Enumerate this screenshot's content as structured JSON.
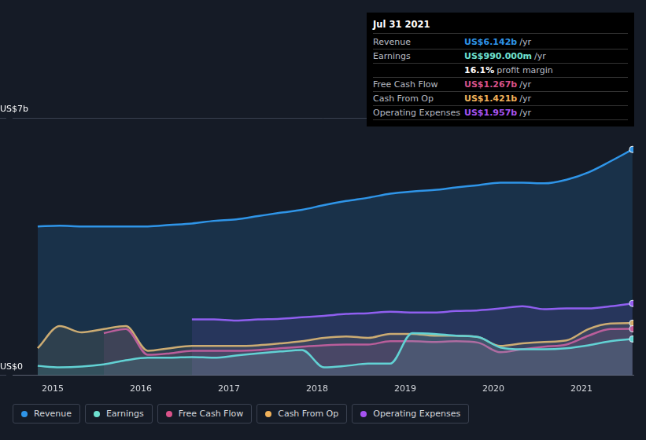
{
  "chart_data": {
    "type": "line",
    "x": [
      2014.83,
      2015.08,
      2015.33,
      2015.58,
      2015.83,
      2016.08,
      2016.33,
      2016.58,
      2016.83,
      2017.08,
      2017.33,
      2017.58,
      2017.83,
      2018.08,
      2018.33,
      2018.58,
      2018.83,
      2019.08,
      2019.33,
      2019.58,
      2019.83,
      2020.08,
      2020.33,
      2020.58,
      2020.83,
      2021.08,
      2021.33,
      2021.58
    ],
    "series": [
      {
        "name": "Revenue",
        "color": "#2f95e8",
        "values": [
          4.05,
          4.07,
          4.05,
          4.05,
          4.05,
          4.05,
          4.09,
          4.13,
          4.2,
          4.24,
          4.33,
          4.42,
          4.5,
          4.63,
          4.74,
          4.83,
          4.94,
          5.0,
          5.04,
          5.11,
          5.17,
          5.24,
          5.24,
          5.22,
          5.32,
          5.52,
          5.82,
          6.142
        ]
      },
      {
        "name": "Earnings",
        "color": "#6ee0d0",
        "values": [
          0.26,
          0.22,
          0.24,
          0.3,
          0.41,
          0.48,
          0.48,
          0.5,
          0.48,
          0.54,
          0.6,
          0.65,
          0.69,
          0.22,
          0.26,
          0.32,
          0.32,
          1.15,
          1.13,
          1.08,
          1.04,
          0.76,
          0.71,
          0.71,
          0.74,
          0.82,
          0.93,
          0.99
        ]
      },
      {
        "name": "Free Cash Flow",
        "color": "#d9528a",
        "values": [
          null,
          null,
          null,
          1.15,
          1.26,
          0.56,
          0.6,
          0.67,
          0.67,
          0.67,
          0.69,
          0.74,
          0.78,
          0.82,
          0.84,
          0.84,
          0.93,
          0.93,
          0.91,
          0.93,
          0.89,
          0.63,
          0.71,
          0.78,
          0.84,
          1.08,
          1.26,
          1.267
        ]
      },
      {
        "name": "Cash From Op",
        "color": "#f0b15a",
        "values": [
          0.74,
          1.34,
          1.17,
          1.26,
          1.34,
          0.67,
          0.74,
          0.8,
          0.8,
          0.8,
          0.82,
          0.87,
          0.93,
          1.02,
          1.06,
          1.02,
          1.13,
          1.13,
          1.08,
          1.08,
          1.04,
          0.8,
          0.87,
          0.91,
          0.95,
          1.26,
          1.41,
          1.421
        ]
      },
      {
        "name": "Operating Expenses",
        "color": "#a653f2",
        "values": [
          null,
          null,
          null,
          null,
          null,
          null,
          null,
          1.52,
          1.52,
          1.49,
          1.52,
          1.54,
          1.58,
          1.62,
          1.67,
          1.69,
          1.73,
          1.71,
          1.71,
          1.75,
          1.77,
          1.82,
          1.88,
          1.8,
          1.82,
          1.82,
          1.88,
          1.957
        ]
      }
    ],
    "xlim": [
      2014.545,
      2021.59
    ],
    "xticks": [
      2015,
      2016,
      2017,
      2018,
      2019,
      2020,
      2021
    ],
    "ylim": [
      0,
      7
    ],
    "yticks": [
      {
        "value": 0,
        "label": "US$0"
      },
      {
        "value": 7,
        "label": "US$7b"
      }
    ],
    "grid": true,
    "legend": "bottom",
    "info_box": {
      "date": "Jul 31 2021",
      "rows": [
        {
          "label": "Revenue",
          "value": "US$6.142b",
          "unit": "/yr",
          "color": "#2f95e8"
        },
        {
          "label": "Earnings",
          "value": "US$990.000m",
          "unit": "/yr",
          "color": "#6ee0d0"
        },
        {
          "label": "",
          "value": "16.1%",
          "unit": "profit margin",
          "color": "#ffffff"
        },
        {
          "label": "Free Cash Flow",
          "value": "US$1.267b",
          "unit": "/yr",
          "color": "#d9528a"
        },
        {
          "label": "Cash From Op",
          "value": "US$1.421b",
          "unit": "/yr",
          "color": "#f0b15a"
        },
        {
          "label": "Operating Expenses",
          "value": "US$1.957b",
          "unit": "/yr",
          "color": "#a653f2"
        }
      ]
    }
  }
}
